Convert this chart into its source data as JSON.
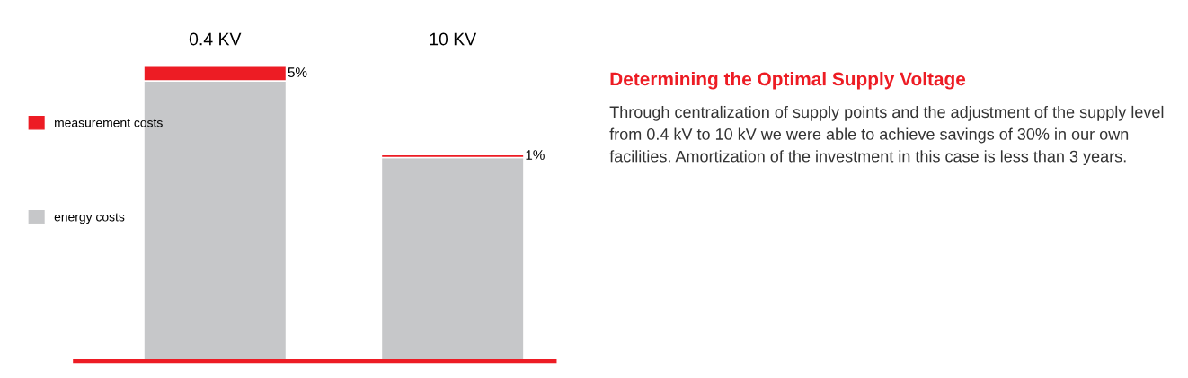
{
  "chart_data": {
    "type": "bar",
    "stacked": true,
    "title": "Determining the Optimal Supply Voltage",
    "annotations": [
      "Through centralization of supply points and the adjustment of the supply level from 0.4 kV to 10 kV we were able to achieve savings of 30% in our own facilities. Amortization of the investment in this case is less than 3 years."
    ],
    "categories": [
      "0.4 KV",
      "10 KV"
    ],
    "series": [
      {
        "name": "energy costs",
        "color": "#c6c7c9",
        "values": [
          95,
          69
        ]
      },
      {
        "name": "measurement costs",
        "color": "#ed1c24",
        "values": [
          5,
          1
        ],
        "value_labels": [
          "5%",
          "1%"
        ]
      }
    ],
    "legend": "left"
  }
}
